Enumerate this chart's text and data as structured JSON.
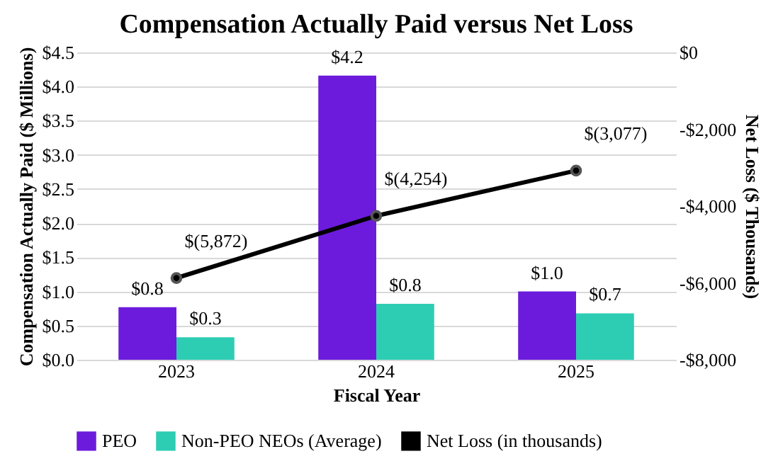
{
  "chart_data": {
    "type": "bar",
    "title": "Compensation Actually Paid versus Net Loss",
    "xlabel": "Fiscal Year",
    "ylabel": "Compensation Actually Paid ($ Millions)",
    "y2label": "Net Loss ($ Thousands)",
    "categories": [
      "2023",
      "2024",
      "2025"
    ],
    "series": [
      {
        "name": "PEO",
        "color": "#6c1bdc",
        "values": [
          0.77,
          4.16,
          1.0
        ],
        "value_labels": [
          "$0.8",
          "$4.2",
          "$1.0"
        ]
      },
      {
        "name": "Non-PEO NEOs (Average)",
        "color": "#2dcdb4",
        "values": [
          0.33,
          0.82,
          0.68
        ],
        "value_labels": [
          "$0.3",
          "$0.8",
          "$0.7"
        ]
      },
      {
        "name": "Net Loss (in thousands)",
        "type": "line",
        "axis": "y2",
        "color": "#000000",
        "marker": "circle",
        "values": [
          -5872,
          -4254,
          -3077
        ],
        "value_labels": [
          "$(5,872)",
          "$(4,254)",
          "$(3,077)"
        ]
      }
    ],
    "ylim": [
      0,
      4.5
    ],
    "yticks": [
      {
        "value": 0,
        "label": "$0.0"
      },
      {
        "value": 0.5,
        "label": "$0.5"
      },
      {
        "value": 1.0,
        "label": "$1.0"
      },
      {
        "value": 1.5,
        "label": "$1.5"
      },
      {
        "value": 2.0,
        "label": "$2.0"
      },
      {
        "value": 2.5,
        "label": "$2.5"
      },
      {
        "value": 3.0,
        "label": "$3.0"
      },
      {
        "value": 3.5,
        "label": "$3.5"
      },
      {
        "value": 4.0,
        "label": "$4.0"
      },
      {
        "value": 4.5,
        "label": "$4.5"
      }
    ],
    "y2lim": [
      -8000,
      0
    ],
    "y2ticks": [
      {
        "value": -8000,
        "label": "-$8,000"
      },
      {
        "value": -6000,
        "label": "-$6,000"
      },
      {
        "value": -4000,
        "label": "-$4,000"
      },
      {
        "value": -2000,
        "label": "-$2,000"
      },
      {
        "value": 0,
        "label": "$0"
      }
    ],
    "grid": "y",
    "legend": "bottom"
  }
}
